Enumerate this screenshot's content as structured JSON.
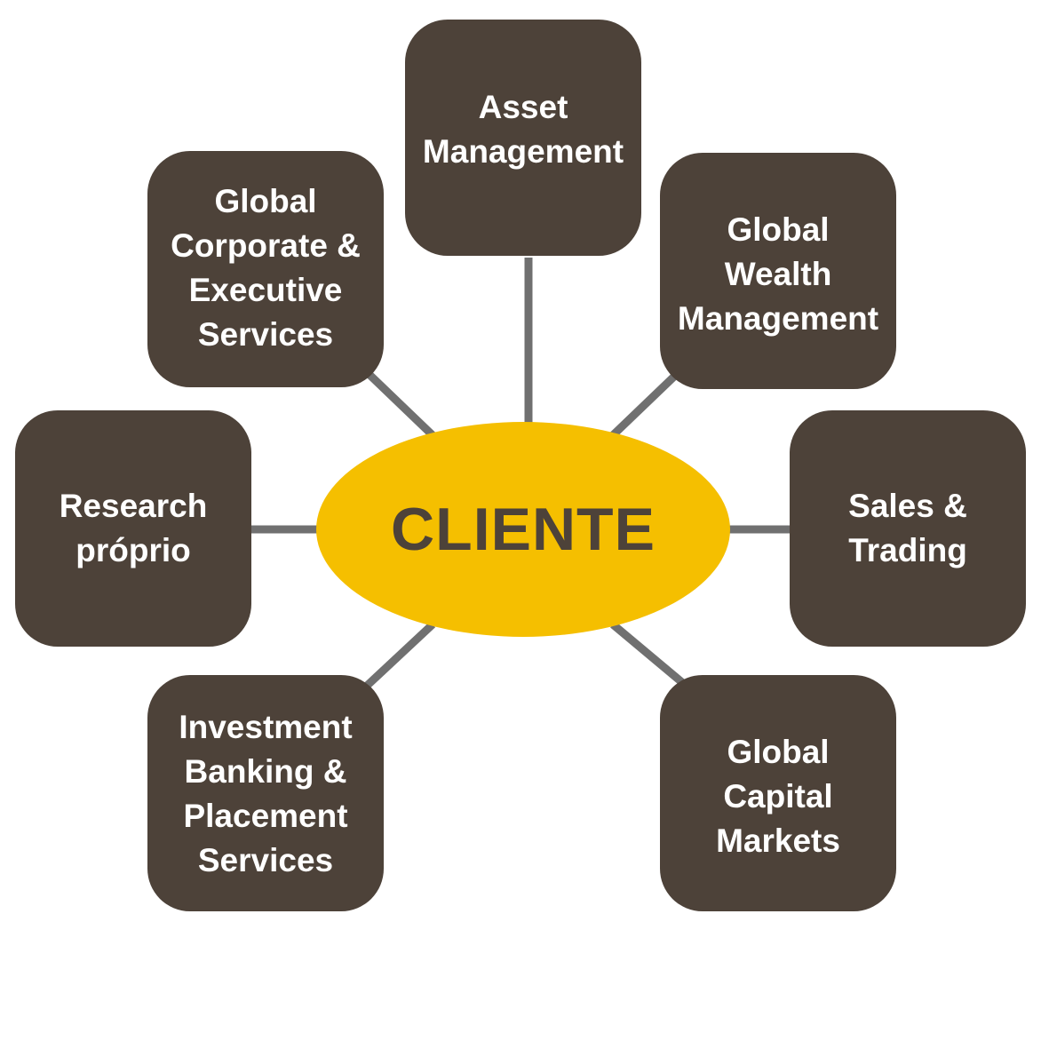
{
  "colors": {
    "node_fill": "#4d4239",
    "node_text": "#ffffff",
    "center_fill": "#f5bf00",
    "center_text": "#4d4239",
    "connector": "#707070"
  },
  "center": {
    "label": "CLIENTE"
  },
  "nodes": {
    "asset_management": {
      "lines": [
        "Asset",
        "Management"
      ]
    },
    "global_corporate": {
      "lines": [
        "Global",
        "Corporate &",
        "Executive",
        "Services"
      ]
    },
    "global_wealth": {
      "lines": [
        "Global",
        "Wealth",
        "Management"
      ]
    },
    "research": {
      "lines": [
        "Research",
        "próprio"
      ]
    },
    "sales_trading": {
      "lines": [
        "Sales &",
        "Trading"
      ]
    },
    "investment_banking": {
      "lines": [
        "Investment",
        "Banking &",
        "Placement",
        "Services"
      ]
    },
    "global_capital_markets": {
      "lines": [
        "Global",
        "Capital",
        "Markets"
      ]
    }
  }
}
